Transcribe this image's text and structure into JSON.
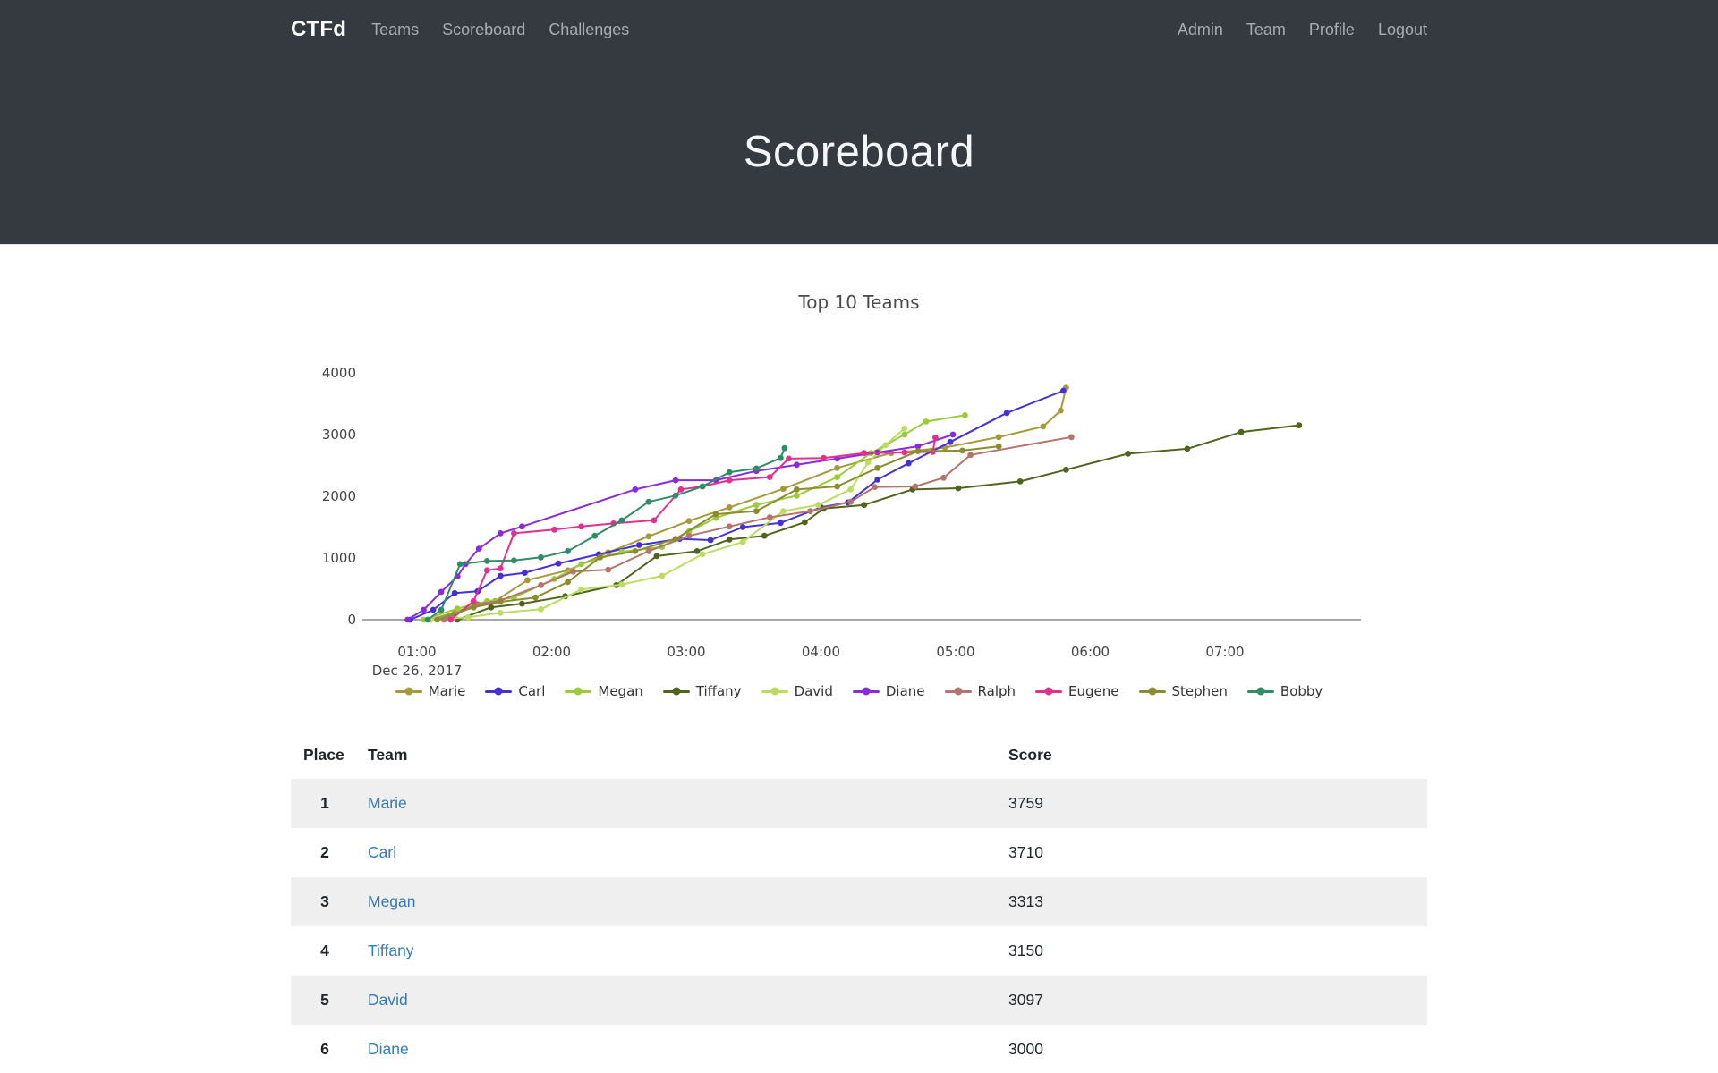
{
  "navbar": {
    "brand": "CTFd",
    "left": [
      {
        "id": "teams",
        "label": "Teams"
      },
      {
        "id": "scoreboard",
        "label": "Scoreboard"
      },
      {
        "id": "challenges",
        "label": "Challenges"
      }
    ],
    "right": [
      {
        "id": "admin",
        "label": "Admin"
      },
      {
        "id": "team",
        "label": "Team"
      },
      {
        "id": "profile",
        "label": "Profile"
      },
      {
        "id": "logout",
        "label": "Logout"
      }
    ]
  },
  "hero": {
    "title": "Scoreboard"
  },
  "chart_data": {
    "type": "line",
    "title": "Top 10 Teams",
    "xlabel": "",
    "ylabel": "",
    "x_axis": {
      "tick_labels": [
        "01:00",
        "02:00",
        "03:00",
        "04:00",
        "05:00",
        "06:00",
        "07:00"
      ],
      "tick_hours": [
        1,
        2,
        3,
        4,
        5,
        6,
        7
      ],
      "date_label": "Dec 26, 2017"
    },
    "y_axis": {
      "ticks": [
        0,
        1000,
        2000,
        3000,
        4000
      ],
      "range": [
        0,
        4000
      ]
    },
    "grid": false,
    "legend_position": "bottom",
    "series": [
      {
        "name": "Marie",
        "color": "#a59a3b",
        "points": [
          [
            1.1,
            0
          ],
          [
            1.28,
            120
          ],
          [
            1.43,
            230
          ],
          [
            1.58,
            300
          ],
          [
            1.82,
            640
          ],
          [
            2.12,
            800
          ],
          [
            2.42,
            1090
          ],
          [
            2.72,
            1350
          ],
          [
            3.02,
            1600
          ],
          [
            3.32,
            1820
          ],
          [
            3.72,
            2120
          ],
          [
            4.12,
            2460
          ],
          [
            4.52,
            2700
          ],
          [
            4.92,
            2790
          ],
          [
            5.32,
            2960
          ],
          [
            5.65,
            3130
          ],
          [
            5.78,
            3390
          ],
          [
            5.82,
            3759
          ]
        ]
      },
      {
        "name": "Carl",
        "color": "#4430d5",
        "points": [
          [
            0.95,
            0
          ],
          [
            1.12,
            160
          ],
          [
            1.28,
            430
          ],
          [
            1.45,
            460
          ],
          [
            1.62,
            710
          ],
          [
            1.8,
            760
          ],
          [
            2.05,
            910
          ],
          [
            2.35,
            1060
          ],
          [
            2.65,
            1210
          ],
          [
            2.95,
            1310
          ],
          [
            3.18,
            1290
          ],
          [
            3.42,
            1500
          ],
          [
            3.7,
            1570
          ],
          [
            4.0,
            1820
          ],
          [
            4.2,
            1900
          ],
          [
            4.42,
            2270
          ],
          [
            4.65,
            2535
          ],
          [
            4.96,
            2880
          ],
          [
            5.38,
            3350
          ],
          [
            5.8,
            3710
          ]
        ]
      },
      {
        "name": "Megan",
        "color": "#9bcb3b",
        "points": [
          [
            1.05,
            0
          ],
          [
            1.3,
            180
          ],
          [
            1.52,
            300
          ],
          [
            1.72,
            360
          ],
          [
            2.02,
            660
          ],
          [
            2.22,
            900
          ],
          [
            2.52,
            1100
          ],
          [
            2.82,
            1180
          ],
          [
            3.02,
            1430
          ],
          [
            3.22,
            1650
          ],
          [
            3.52,
            1860
          ],
          [
            3.82,
            2010
          ],
          [
            4.12,
            2310
          ],
          [
            4.37,
            2700
          ],
          [
            4.62,
            3000
          ],
          [
            4.78,
            3210
          ],
          [
            5.07,
            3313
          ]
        ]
      },
      {
        "name": "Tiffany",
        "color": "#50641f",
        "points": [
          [
            1.3,
            0
          ],
          [
            1.55,
            200
          ],
          [
            1.78,
            260
          ],
          [
            2.1,
            380
          ],
          [
            2.48,
            560
          ],
          [
            2.78,
            1030
          ],
          [
            3.08,
            1110
          ],
          [
            3.32,
            1300
          ],
          [
            3.58,
            1360
          ],
          [
            3.88,
            1580
          ],
          [
            4.02,
            1800
          ],
          [
            4.32,
            1860
          ],
          [
            4.68,
            2110
          ],
          [
            5.02,
            2130
          ],
          [
            5.48,
            2240
          ],
          [
            5.82,
            2430
          ],
          [
            6.28,
            2690
          ],
          [
            6.72,
            2770
          ],
          [
            7.12,
            3040
          ],
          [
            7.55,
            3150
          ]
        ]
      },
      {
        "name": "David",
        "color": "#bcdc61",
        "points": [
          [
            1.1,
            0
          ],
          [
            1.38,
            40
          ],
          [
            1.62,
            110
          ],
          [
            1.92,
            170
          ],
          [
            2.22,
            490
          ],
          [
            2.52,
            570
          ],
          [
            2.82,
            710
          ],
          [
            3.12,
            1060
          ],
          [
            3.42,
            1260
          ],
          [
            3.72,
            1760
          ],
          [
            3.98,
            1860
          ],
          [
            4.22,
            2110
          ],
          [
            4.35,
            2550
          ],
          [
            4.48,
            2830
          ],
          [
            4.62,
            3097
          ]
        ]
      },
      {
        "name": "Diane",
        "color": "#8a2bd9",
        "points": [
          [
            0.93,
            0
          ],
          [
            1.05,
            160
          ],
          [
            1.18,
            450
          ],
          [
            1.3,
            700
          ],
          [
            1.36,
            900
          ],
          [
            1.46,
            1150
          ],
          [
            1.62,
            1400
          ],
          [
            1.78,
            1510
          ],
          [
            2.62,
            2110
          ],
          [
            2.92,
            2260
          ],
          [
            3.22,
            2260
          ],
          [
            3.52,
            2410
          ],
          [
            3.82,
            2510
          ],
          [
            4.12,
            2610
          ],
          [
            4.42,
            2710
          ],
          [
            4.72,
            2810
          ],
          [
            4.98,
            3000
          ]
        ]
      },
      {
        "name": "Ralph",
        "color": "#b3756f",
        "points": [
          [
            1.2,
            0
          ],
          [
            1.45,
            250
          ],
          [
            1.62,
            310
          ],
          [
            1.92,
            560
          ],
          [
            2.16,
            780
          ],
          [
            2.42,
            810
          ],
          [
            2.72,
            1110
          ],
          [
            3.02,
            1360
          ],
          [
            3.32,
            1510
          ],
          [
            3.62,
            1660
          ],
          [
            3.92,
            1760
          ],
          [
            4.22,
            1910
          ],
          [
            4.4,
            2150
          ],
          [
            4.7,
            2160
          ],
          [
            4.91,
            2300
          ],
          [
            5.11,
            2670
          ],
          [
            5.86,
            2960
          ]
        ]
      },
      {
        "name": "Eugene",
        "color": "#e0318f",
        "points": [
          [
            1.25,
            0
          ],
          [
            1.42,
            300
          ],
          [
            1.52,
            800
          ],
          [
            1.62,
            830
          ],
          [
            1.72,
            1400
          ],
          [
            2.02,
            1460
          ],
          [
            2.22,
            1510
          ],
          [
            2.46,
            1560
          ],
          [
            2.76,
            1610
          ],
          [
            2.96,
            2110
          ],
          [
            3.12,
            2160
          ],
          [
            3.32,
            2260
          ],
          [
            3.62,
            2310
          ],
          [
            3.76,
            2610
          ],
          [
            4.02,
            2620
          ],
          [
            4.32,
            2700
          ],
          [
            4.62,
            2710
          ],
          [
            4.83,
            2720
          ],
          [
            4.85,
            2950
          ]
        ]
      },
      {
        "name": "Stephen",
        "color": "#8c8c2f",
        "points": [
          [
            1.15,
            0
          ],
          [
            1.42,
            200
          ],
          [
            1.62,
            290
          ],
          [
            1.88,
            360
          ],
          [
            2.12,
            610
          ],
          [
            2.36,
            1010
          ],
          [
            2.62,
            1110
          ],
          [
            2.92,
            1310
          ],
          [
            3.22,
            1710
          ],
          [
            3.52,
            1760
          ],
          [
            3.82,
            2110
          ],
          [
            4.12,
            2160
          ],
          [
            4.42,
            2460
          ],
          [
            4.72,
            2730
          ],
          [
            5.05,
            2740
          ],
          [
            5.32,
            2810
          ]
        ]
      },
      {
        "name": "Bobby",
        "color": "#2f8c66",
        "points": [
          [
            1.08,
            0
          ],
          [
            1.18,
            160
          ],
          [
            1.32,
            900
          ],
          [
            1.52,
            950
          ],
          [
            1.72,
            960
          ],
          [
            1.92,
            1010
          ],
          [
            2.12,
            1110
          ],
          [
            2.32,
            1360
          ],
          [
            2.52,
            1610
          ],
          [
            2.72,
            1910
          ],
          [
            2.92,
            2010
          ],
          [
            3.12,
            2160
          ],
          [
            3.32,
            2390
          ],
          [
            3.52,
            2450
          ],
          [
            3.7,
            2620
          ],
          [
            3.73,
            2780
          ]
        ]
      }
    ]
  },
  "table": {
    "headers": {
      "place": "Place",
      "team": "Team",
      "score": "Score"
    },
    "rows": [
      {
        "place": "1",
        "team": "Marie",
        "score": "3759"
      },
      {
        "place": "2",
        "team": "Carl",
        "score": "3710"
      },
      {
        "place": "3",
        "team": "Megan",
        "score": "3313"
      },
      {
        "place": "4",
        "team": "Tiffany",
        "score": "3150"
      },
      {
        "place": "5",
        "team": "David",
        "score": "3097"
      },
      {
        "place": "6",
        "team": "Diane",
        "score": "3000"
      }
    ]
  }
}
